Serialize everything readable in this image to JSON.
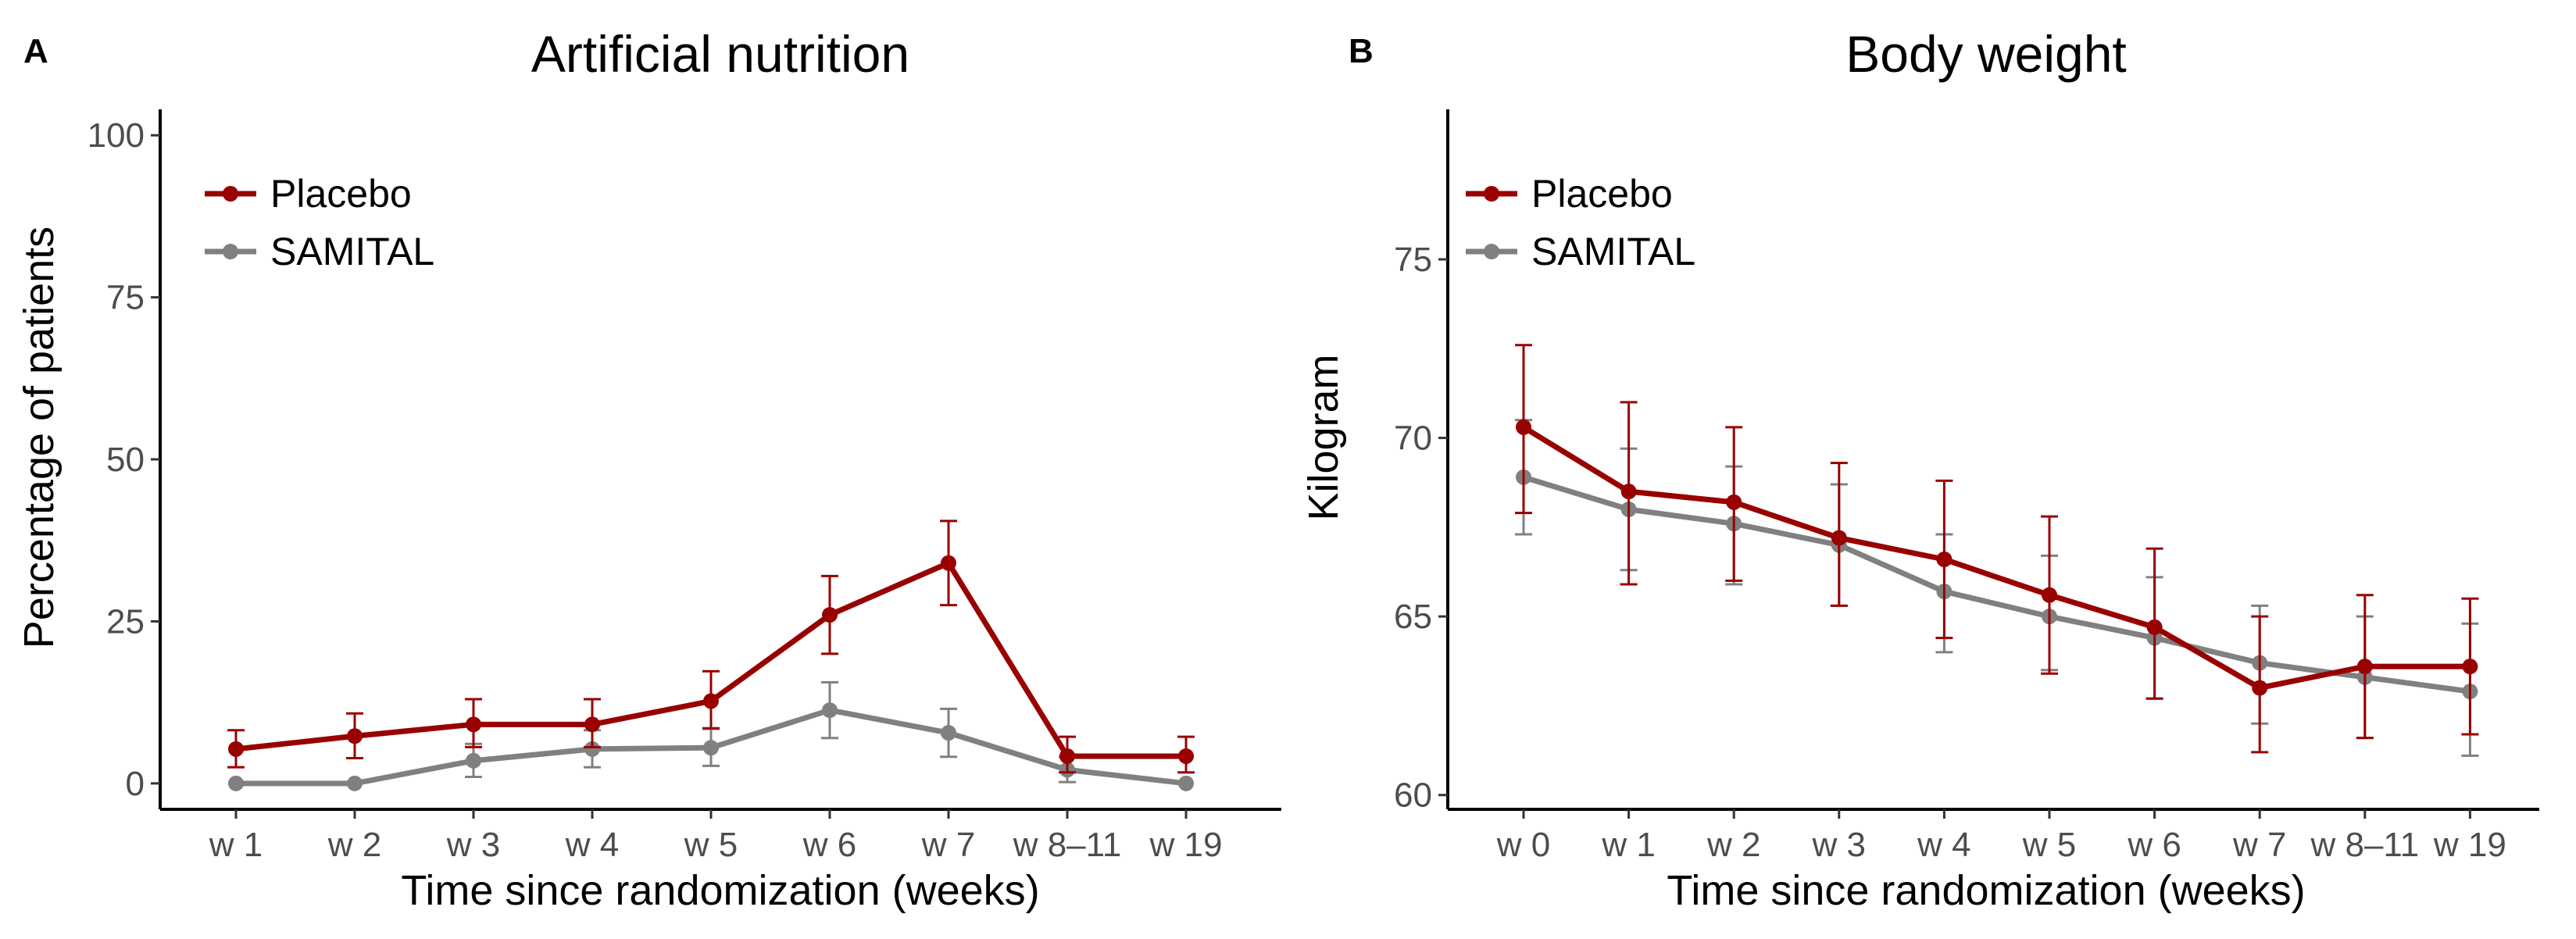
{
  "chart_data": [
    {
      "type": "line",
      "panel_label": "A",
      "title": "Artificial nutrition",
      "xlabel": "Time since randomization (weeks)",
      "ylabel": "Percentage of patients",
      "categories": [
        "w 1",
        "w 2",
        "w 3",
        "w 4",
        "w 5",
        "w 6",
        "w 7",
        "w 8–11",
        "w 19"
      ],
      "ylim": [
        -4,
        104
      ],
      "yticks": [
        0,
        25,
        50,
        75,
        100
      ],
      "ytick_labels": [
        "0",
        "25",
        "50",
        "75",
        "100"
      ],
      "legend": {
        "position": "top-left",
        "entries": [
          "Placebo",
          "SAMITAL"
        ]
      },
      "series": [
        {
          "name": "Placebo",
          "color": "#990000",
          "values": [
            5.3,
            7.3,
            9.1,
            9.1,
            12.7,
            26.0,
            34.0,
            4.2,
            4.2
          ],
          "error_low": [
            2.5,
            3.9,
            5.6,
            5.6,
            8.5,
            20.0,
            27.5,
            1.7,
            1.7
          ],
          "error_high": [
            8.2,
            10.8,
            13.0,
            13.0,
            17.3,
            32.0,
            40.5,
            7.2,
            7.2
          ]
        },
        {
          "name": "SAMITAL",
          "color": "#808080",
          "values": [
            0.0,
            0.0,
            3.5,
            5.3,
            5.5,
            11.3,
            7.8,
            2.1,
            0.0
          ],
          "error_low": [
            0.0,
            0.0,
            1.0,
            2.5,
            2.7,
            7.0,
            4.1,
            0.2,
            0.0
          ],
          "error_high": [
            0.0,
            0.0,
            6.1,
            8.2,
            8.4,
            15.6,
            11.5,
            4.1,
            0.0
          ]
        }
      ]
    },
    {
      "type": "line",
      "panel_label": "B",
      "title": "Body weight",
      "xlabel": "Time since randomization (weeks)",
      "ylabel": "Kilogram",
      "categories": [
        "w 0",
        "w 1",
        "w 2",
        "w 3",
        "w 4",
        "w 5",
        "w 6",
        "w 7",
        "w 8–11",
        "w 19"
      ],
      "ylim": [
        59.6,
        79.2
      ],
      "yticks": [
        60,
        65,
        70,
        75
      ],
      "ytick_labels": [
        "60",
        "65",
        "70",
        "75"
      ],
      "legend": {
        "position": "top-left",
        "entries": [
          "Placebo",
          "SAMITAL"
        ]
      },
      "series": [
        {
          "name": "Placebo",
          "color": "#990000",
          "values": [
            70.3,
            68.5,
            68.2,
            67.2,
            66.6,
            65.6,
            64.7,
            63.0,
            63.6,
            63.6
          ],
          "error_low": [
            67.9,
            65.9,
            66.0,
            65.3,
            64.4,
            63.4,
            62.7,
            61.2,
            61.6,
            61.7
          ],
          "error_high": [
            72.6,
            71.0,
            70.3,
            69.3,
            68.8,
            67.8,
            66.9,
            65.0,
            65.6,
            65.5
          ]
        },
        {
          "name": "SAMITAL",
          "color": "#808080",
          "values": [
            68.9,
            68.0,
            67.6,
            67.0,
            65.7,
            65.0,
            64.4,
            63.7,
            63.3,
            62.9
          ],
          "error_low": [
            67.3,
            66.3,
            65.9,
            65.3,
            64.0,
            63.5,
            62.7,
            62.0,
            61.6,
            61.1
          ],
          "error_high": [
            70.5,
            69.7,
            69.2,
            68.7,
            67.3,
            66.7,
            66.1,
            65.3,
            65.0,
            64.8
          ]
        }
      ]
    }
  ]
}
